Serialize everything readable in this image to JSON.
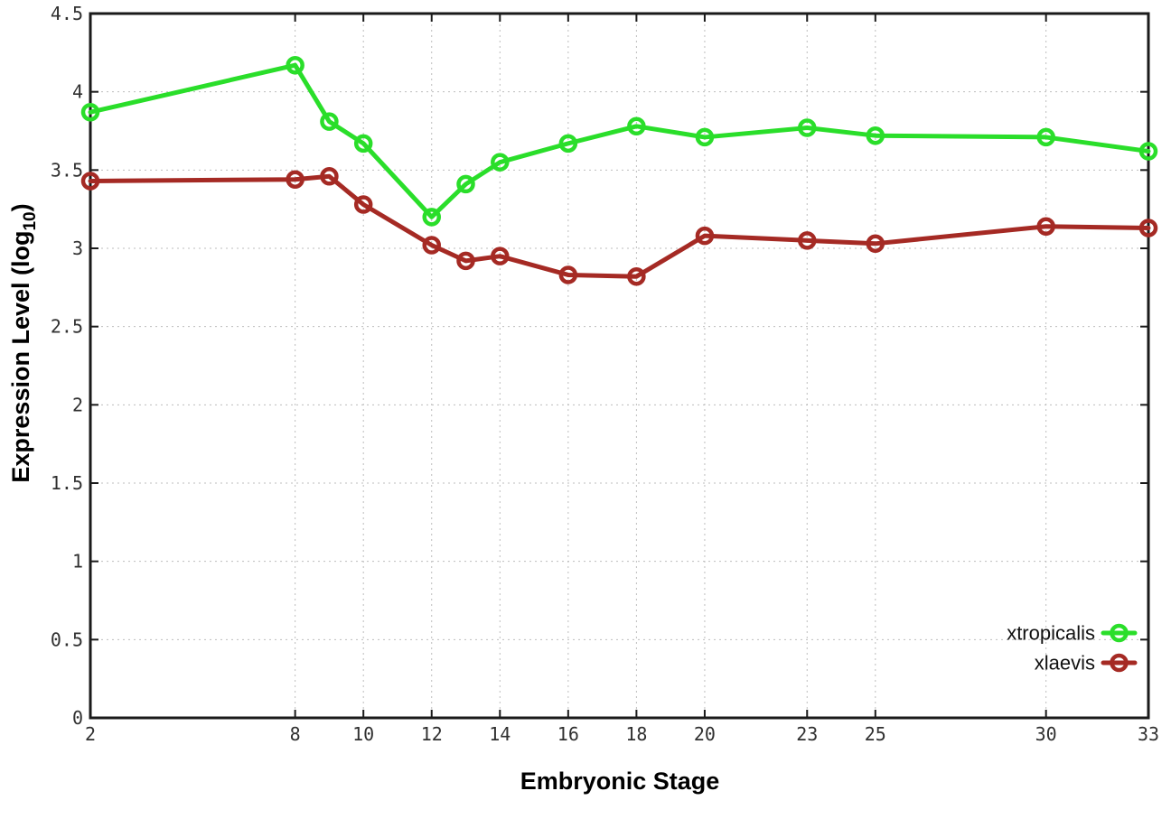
{
  "chart_data": {
    "type": "line",
    "title": "",
    "xlabel": "Embryonic Stage",
    "ylabel": "Expression Level (log10)",
    "ylabel_main": "Expression Level (log",
    "ylabel_sub": "10",
    "ylabel_close": ")",
    "x": [
      2,
      8,
      9,
      10,
      12,
      13,
      14,
      16,
      18,
      20,
      23,
      25,
      30,
      33
    ],
    "series": [
      {
        "name": "xtropicalis",
        "color": "#2ade2a",
        "marker": "open-circle",
        "values": [
          3.87,
          4.17,
          3.81,
          3.67,
          3.2,
          3.41,
          3.55,
          3.67,
          3.78,
          3.71,
          3.77,
          3.72,
          3.71,
          3.62
        ]
      },
      {
        "name": "xlaevis",
        "color": "#a52a24",
        "marker": "open-circle",
        "values": [
          3.43,
          3.44,
          3.46,
          3.28,
          3.02,
          2.92,
          2.95,
          2.83,
          2.82,
          3.08,
          3.05,
          3.03,
          3.14,
          3.13
        ]
      }
    ],
    "xlim": [
      2,
      33
    ],
    "ylim": [
      0,
      4.5
    ],
    "x_ticks": [
      2,
      8,
      10,
      12,
      14,
      16,
      18,
      20,
      23,
      25,
      30,
      33
    ],
    "x_tick_labels": [
      "2",
      "8",
      "10",
      "12",
      "14",
      "16",
      "18",
      "20",
      "23",
      "25",
      "30",
      "33"
    ],
    "y_ticks": [
      0,
      0.5,
      1,
      1.5,
      2,
      2.5,
      3,
      3.5,
      4,
      4.5
    ],
    "y_tick_labels": [
      "0",
      "0.5",
      "1",
      "1.5",
      "2",
      "2.5",
      "3",
      "3.5",
      "4",
      "4.5"
    ],
    "grid": "dotted",
    "grid_color": "#bdbdbd",
    "border_color": "#1a1a1a",
    "background_color": "#ffffff",
    "legend_position": "inside-bottom-right",
    "legend_entries": [
      "xtropicalis",
      "xlaevis"
    ]
  }
}
